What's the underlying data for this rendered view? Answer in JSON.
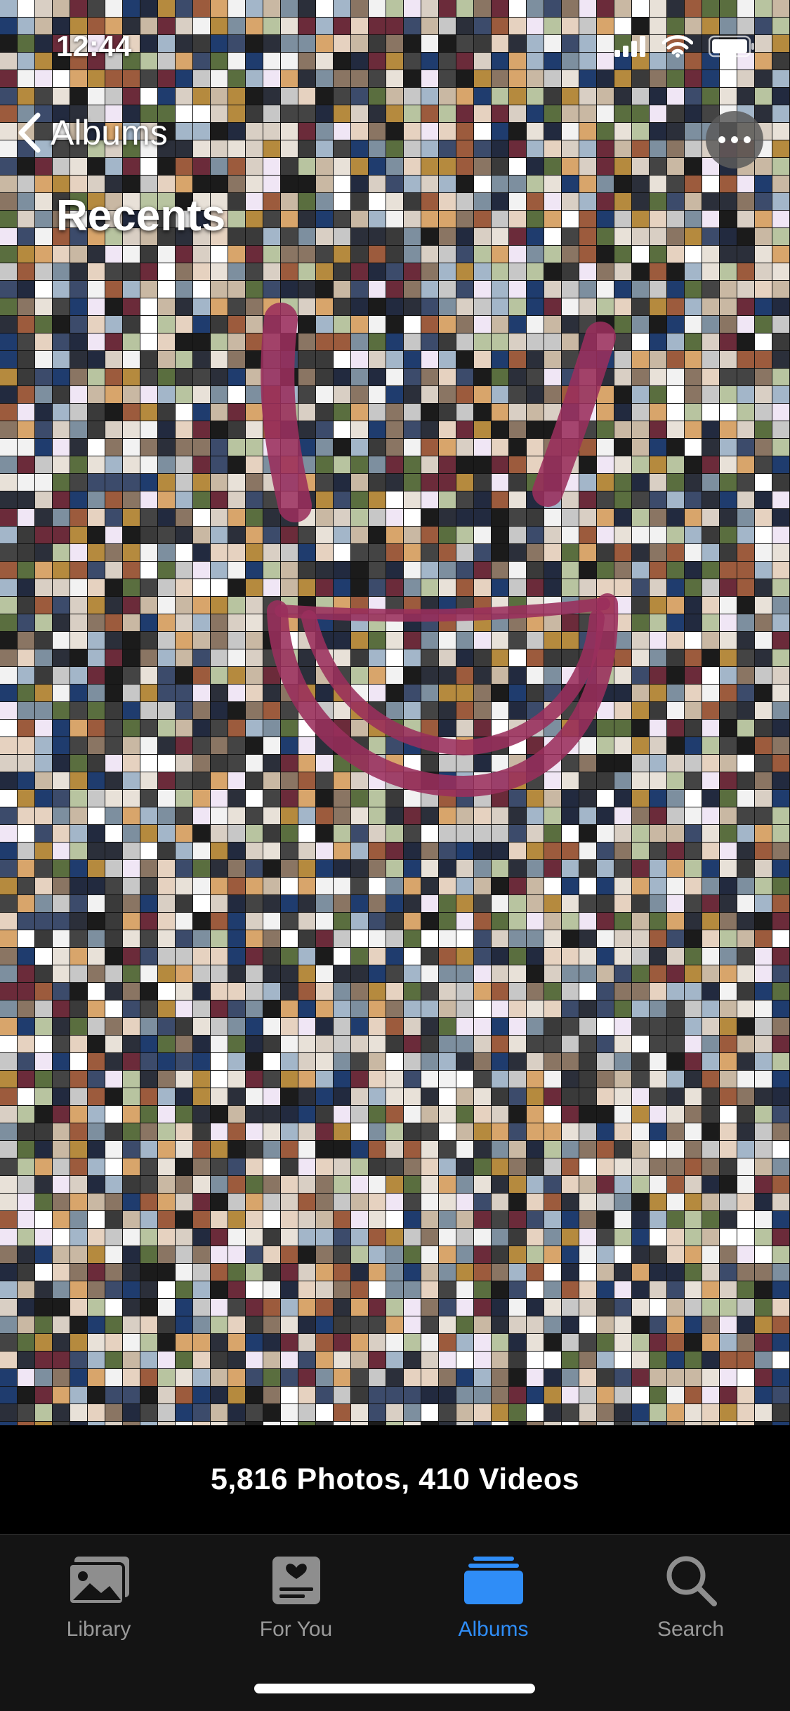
{
  "status_bar": {
    "time": "12:44",
    "icons": [
      "cellular-signal-icon",
      "wifi-icon",
      "battery-icon"
    ]
  },
  "nav": {
    "back_label": "Albums",
    "title": "Recents",
    "more_icon": "ellipsis-icon"
  },
  "library": {
    "count_text": "5,816 Photos, 410 Videos"
  },
  "tabs": [
    {
      "label": "Library",
      "icon": "photo-stack-icon",
      "active": false
    },
    {
      "label": "For You",
      "icon": "heart-card-icon",
      "active": false
    },
    {
      "label": "Albums",
      "icon": "albums-folder-icon",
      "active": true
    },
    {
      "label": "Search",
      "icon": "search-icon",
      "active": false
    }
  ],
  "colors": {
    "accent": "#2f8df7",
    "drawing": "#9a2f5c",
    "tab_bar": "#141414"
  }
}
